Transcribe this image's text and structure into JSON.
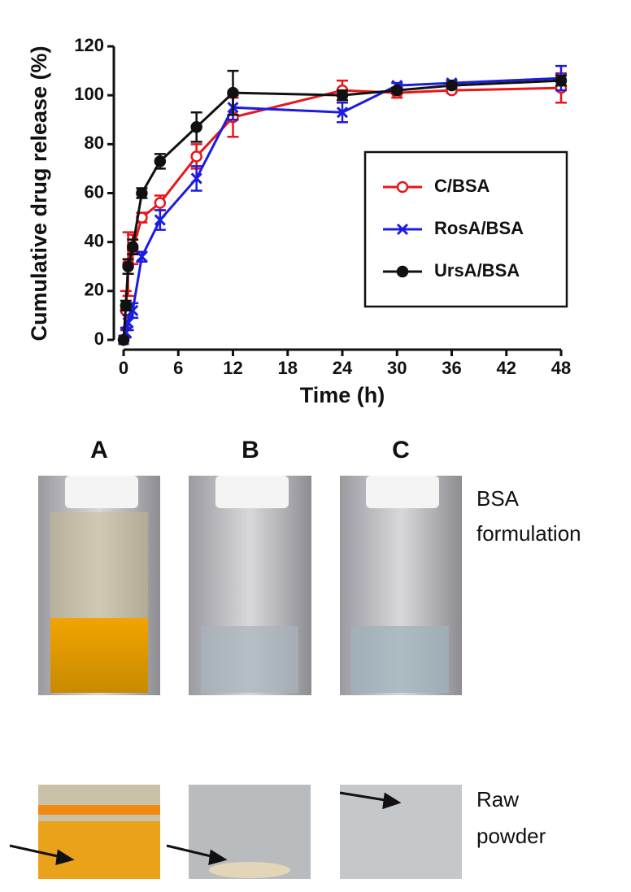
{
  "chart_data": {
    "type": "line",
    "y_label": "Cumulative drug release (%)",
    "x_label": "Time (h)",
    "x": [
      0,
      0.25,
      0.5,
      1,
      2,
      4,
      8,
      12,
      24,
      30,
      36,
      48
    ],
    "series": [
      {
        "name": "C/BSA",
        "color": "#e8161b",
        "marker": "open-circle",
        "values": [
          0,
          12,
          31,
          37,
          50,
          56,
          75,
          91,
          102,
          101,
          102,
          103
        ],
        "errors": [
          0,
          8,
          13,
          6,
          2,
          3,
          5,
          8,
          4,
          2,
          1,
          6
        ]
      },
      {
        "name": "RosA/BSA",
        "color": "#1c1ce0",
        "marker": "cross",
        "values": [
          0,
          3,
          7,
          12,
          34,
          49,
          66,
          95,
          93,
          104,
          105,
          107
        ],
        "errors": [
          0,
          2,
          3,
          3,
          2,
          4,
          5,
          5,
          4,
          1,
          1,
          5
        ]
      },
      {
        "name": "UrsA/BSA",
        "color": "#111111",
        "marker": "filled-circle",
        "values": [
          0,
          14,
          30,
          38,
          60,
          73,
          87,
          101,
          100,
          102,
          104,
          106
        ],
        "errors": [
          0,
          2,
          3,
          3,
          2,
          3,
          6,
          9,
          2,
          1,
          1,
          2
        ]
      }
    ],
    "xlim": [
      0,
      48
    ],
    "xticks": [
      0,
      6,
      12,
      18,
      24,
      30,
      36,
      42,
      48
    ],
    "ylim": [
      0,
      120
    ],
    "yticks": [
      0,
      20,
      40,
      60,
      80,
      100,
      120
    ],
    "legend": "lower right"
  },
  "panels": {
    "columns": [
      "A",
      "B",
      "C"
    ],
    "rows": [
      [
        "BSA",
        "formulation"
      ],
      [
        "Raw",
        "powder"
      ]
    ]
  }
}
